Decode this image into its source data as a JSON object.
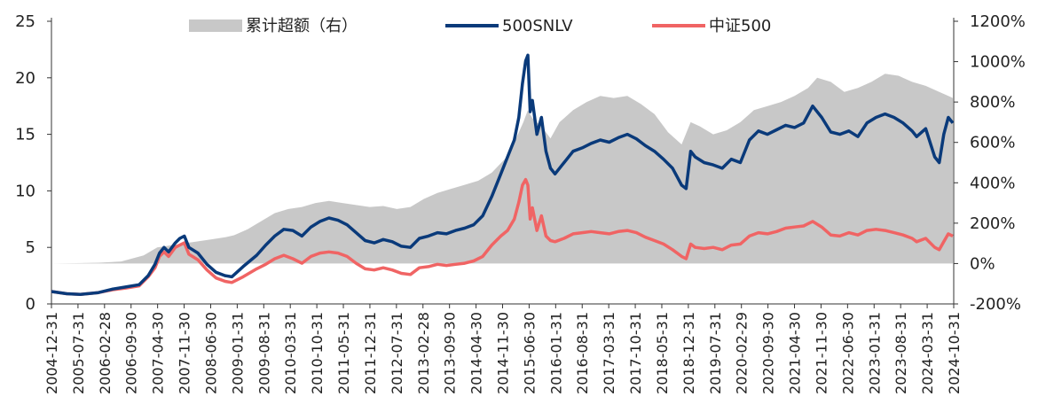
{
  "chart_data": {
    "type": "line",
    "legend": [
      {
        "key": "excess",
        "label": "累计超额（右）",
        "color": "#c8c8c8"
      },
      {
        "key": "snlv",
        "label": "500SNLV",
        "color": "#0a3a7a"
      },
      {
        "key": "zz500",
        "label": "中证500",
        "color": "#f06464"
      }
    ],
    "legend_position": "top",
    "left_axis": {
      "min": 0,
      "max": 25,
      "ticks": [
        "0",
        "5",
        "10",
        "15",
        "20",
        "25"
      ]
    },
    "right_axis": {
      "min": -200,
      "max": 1200,
      "ticks": [
        "-200%",
        "0%",
        "200%",
        "400%",
        "600%",
        "800%",
        "1000%",
        "1200%"
      ]
    },
    "x_tick_labels": [
      "2004-12-31",
      "2005-07-31",
      "2006-02-28",
      "2006-09-30",
      "2007-04-30",
      "2007-11-30",
      "2008-06-30",
      "2009-01-31",
      "2009-08-31",
      "2010-03-31",
      "2010-10-31",
      "2011-05-31",
      "2011-12-31",
      "2012-07-31",
      "2013-02-28",
      "2013-09-30",
      "2014-04-30",
      "2014-11-30",
      "2015-06-30",
      "2016-01-31",
      "2016-08-31",
      "2017-03-31",
      "2017-10-31",
      "2018-05-31",
      "2018-12-31",
      "2019-07-31",
      "2020-02-29",
      "2020-09-30",
      "2021-04-30",
      "2021-11-30",
      "2022-06-30",
      "2023-01-31",
      "2023-08-31",
      "2024-03-31",
      "2024-10-31"
    ],
    "x_range": [
      2004.96,
      2024.92
    ],
    "series": [
      {
        "key": "snlv",
        "name": "500SNLV",
        "axis": "left",
        "x": [
          2004.96,
          2005.3,
          2005.6,
          2006.0,
          2006.3,
          2006.6,
          2006.9,
          2007.1,
          2007.25,
          2007.35,
          2007.45,
          2007.55,
          2007.7,
          2007.8,
          2007.9,
          2008.0,
          2008.2,
          2008.4,
          2008.6,
          2008.8,
          2008.95,
          2009.2,
          2009.5,
          2009.7,
          2009.9,
          2010.1,
          2010.3,
          2010.5,
          2010.7,
          2010.9,
          2011.1,
          2011.3,
          2011.5,
          2011.7,
          2011.9,
          2012.1,
          2012.3,
          2012.5,
          2012.7,
          2012.9,
          2013.1,
          2013.3,
          2013.5,
          2013.7,
          2013.9,
          2014.1,
          2014.3,
          2014.5,
          2014.7,
          2014.9,
          2015.05,
          2015.2,
          2015.3,
          2015.38,
          2015.45,
          2015.5,
          2015.55,
          2015.6,
          2015.7,
          2015.8,
          2015.9,
          2016.0,
          2016.1,
          2016.3,
          2016.5,
          2016.7,
          2016.9,
          2017.1,
          2017.3,
          2017.5,
          2017.7,
          2017.9,
          2018.1,
          2018.3,
          2018.5,
          2018.7,
          2018.9,
          2019.0,
          2019.1,
          2019.2,
          2019.4,
          2019.6,
          2019.8,
          2020.0,
          2020.2,
          2020.4,
          2020.6,
          2020.8,
          2021.0,
          2021.2,
          2021.4,
          2021.6,
          2021.8,
          2022.0,
          2022.2,
          2022.4,
          2022.6,
          2022.8,
          2023.0,
          2023.2,
          2023.4,
          2023.6,
          2023.8,
          2024.0,
          2024.1,
          2024.3,
          2024.5,
          2024.6,
          2024.7,
          2024.8,
          2024.9
        ],
        "y": [
          1.1,
          0.9,
          0.85,
          1.0,
          1.3,
          1.5,
          1.7,
          2.5,
          3.5,
          4.5,
          5.0,
          4.6,
          5.4,
          5.8,
          6.0,
          5.0,
          4.5,
          3.5,
          2.8,
          2.5,
          2.4,
          3.3,
          4.3,
          5.2,
          6.0,
          6.6,
          6.5,
          6.0,
          6.8,
          7.3,
          7.6,
          7.4,
          7.0,
          6.3,
          5.6,
          5.4,
          5.7,
          5.5,
          5.1,
          5.0,
          5.8,
          6.0,
          6.3,
          6.2,
          6.5,
          6.7,
          7.0,
          7.8,
          9.5,
          11.5,
          13.0,
          14.5,
          16.5,
          19.5,
          21.5,
          22.0,
          17.0,
          18.0,
          15.0,
          16.5,
          13.5,
          12.0,
          11.5,
          12.5,
          13.5,
          13.8,
          14.2,
          14.5,
          14.3,
          14.7,
          15.0,
          14.6,
          14.0,
          13.5,
          12.8,
          12.0,
          10.5,
          10.2,
          13.5,
          13.0,
          12.5,
          12.3,
          12.0,
          12.8,
          12.5,
          14.5,
          15.3,
          15.0,
          15.4,
          15.8,
          15.6,
          16.0,
          17.5,
          16.5,
          15.2,
          15.0,
          15.3,
          14.8,
          16.0,
          16.5,
          16.8,
          16.5,
          16.0,
          15.3,
          14.8,
          15.5,
          13.0,
          12.5,
          15.0,
          16.5,
          16.0
        ]
      },
      {
        "key": "zz500",
        "name": "中证500",
        "axis": "left",
        "x": [
          2004.96,
          2005.3,
          2005.6,
          2006.0,
          2006.3,
          2006.6,
          2006.9,
          2007.1,
          2007.25,
          2007.35,
          2007.45,
          2007.55,
          2007.7,
          2007.8,
          2007.9,
          2008.0,
          2008.2,
          2008.4,
          2008.6,
          2008.8,
          2008.95,
          2009.2,
          2009.5,
          2009.7,
          2009.9,
          2010.1,
          2010.3,
          2010.5,
          2010.7,
          2010.9,
          2011.1,
          2011.3,
          2011.5,
          2011.7,
          2011.9,
          2012.1,
          2012.3,
          2012.5,
          2012.7,
          2012.9,
          2013.1,
          2013.3,
          2013.5,
          2013.7,
          2013.9,
          2014.1,
          2014.3,
          2014.5,
          2014.7,
          2014.9,
          2015.05,
          2015.2,
          2015.3,
          2015.38,
          2015.45,
          2015.5,
          2015.55,
          2015.6,
          2015.7,
          2015.8,
          2015.9,
          2016.0,
          2016.1,
          2016.3,
          2016.5,
          2016.7,
          2016.9,
          2017.1,
          2017.3,
          2017.5,
          2017.7,
          2017.9,
          2018.1,
          2018.3,
          2018.5,
          2018.7,
          2018.9,
          2019.0,
          2019.1,
          2019.2,
          2019.4,
          2019.6,
          2019.8,
          2020.0,
          2020.2,
          2020.4,
          2020.6,
          2020.8,
          2021.0,
          2021.2,
          2021.4,
          2021.6,
          2021.8,
          2022.0,
          2022.2,
          2022.4,
          2022.6,
          2022.8,
          2023.0,
          2023.2,
          2023.4,
          2023.6,
          2023.8,
          2024.0,
          2024.1,
          2024.3,
          2024.5,
          2024.6,
          2024.7,
          2024.8,
          2024.9
        ],
        "y": [
          1.1,
          0.9,
          0.85,
          1.0,
          1.25,
          1.4,
          1.6,
          2.4,
          3.2,
          4.2,
          4.6,
          4.2,
          5.0,
          5.2,
          5.4,
          4.4,
          3.9,
          3.0,
          2.3,
          2.0,
          1.9,
          2.4,
          3.1,
          3.5,
          4.0,
          4.3,
          4.0,
          3.6,
          4.2,
          4.5,
          4.6,
          4.5,
          4.2,
          3.6,
          3.1,
          3.0,
          3.2,
          3.0,
          2.7,
          2.6,
          3.2,
          3.3,
          3.5,
          3.4,
          3.5,
          3.6,
          3.8,
          4.2,
          5.2,
          6.0,
          6.5,
          7.5,
          9.0,
          10.5,
          11.0,
          10.5,
          7.5,
          8.5,
          6.5,
          7.8,
          6.0,
          5.6,
          5.5,
          5.8,
          6.2,
          6.3,
          6.4,
          6.3,
          6.2,
          6.4,
          6.5,
          6.3,
          5.9,
          5.6,
          5.3,
          4.8,
          4.2,
          4.0,
          5.3,
          5.0,
          4.9,
          5.0,
          4.8,
          5.2,
          5.3,
          6.0,
          6.3,
          6.2,
          6.4,
          6.7,
          6.8,
          6.9,
          7.3,
          6.8,
          6.1,
          6.0,
          6.3,
          6.1,
          6.5,
          6.6,
          6.5,
          6.3,
          6.1,
          5.8,
          5.5,
          5.8,
          5.0,
          4.8,
          5.5,
          6.2,
          6.0
        ]
      },
      {
        "key": "excess",
        "name": "累计超额（右）",
        "axis": "right",
        "x": [
          2004.96,
          2005.5,
          2006.0,
          2006.5,
          2007.0,
          2007.3,
          2007.6,
          2007.9,
          2008.2,
          2008.5,
          2008.8,
          2009.0,
          2009.3,
          2009.6,
          2009.9,
          2010.2,
          2010.5,
          2010.8,
          2011.1,
          2011.4,
          2011.7,
          2012.0,
          2012.3,
          2012.6,
          2012.9,
          2013.2,
          2013.5,
          2013.8,
          2014.1,
          2014.4,
          2014.7,
          2015.0,
          2015.2,
          2015.4,
          2015.5,
          2015.6,
          2015.8,
          2016.0,
          2016.2,
          2016.5,
          2016.8,
          2017.1,
          2017.4,
          2017.7,
          2018.0,
          2018.3,
          2018.6,
          2018.9,
          2019.1,
          2019.3,
          2019.6,
          2019.9,
          2020.2,
          2020.5,
          2020.8,
          2021.1,
          2021.4,
          2021.7,
          2021.9,
          2022.2,
          2022.5,
          2022.8,
          2023.1,
          2023.4,
          2023.7,
          2024.0,
          2024.3,
          2024.6,
          2024.8,
          2024.9
        ],
        "y": [
          0,
          2,
          4,
          10,
          40,
          80,
          90,
          100,
          110,
          120,
          130,
          140,
          170,
          210,
          250,
          270,
          280,
          300,
          310,
          300,
          290,
          280,
          285,
          270,
          280,
          320,
          350,
          370,
          390,
          410,
          450,
          520,
          600,
          700,
          760,
          720,
          680,
          620,
          700,
          760,
          800,
          830,
          820,
          830,
          790,
          740,
          650,
          590,
          700,
          680,
          640,
          660,
          700,
          760,
          780,
          800,
          830,
          870,
          920,
          900,
          850,
          870,
          900,
          940,
          930,
          900,
          880,
          850,
          830,
          820
        ]
      }
    ]
  }
}
